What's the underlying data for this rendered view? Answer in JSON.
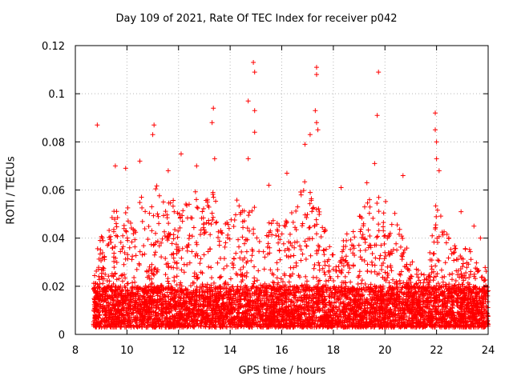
{
  "chart_data": {
    "type": "scatter",
    "title": "Day 109 of 2021, Rate Of TEC Index for receiver p042",
    "xlabel": "GPS time / hours",
    "ylabel": "ROTI / TECUs",
    "xlim": [
      8,
      24
    ],
    "ylim": [
      0,
      0.12
    ],
    "x_ticks": [
      8,
      10,
      12,
      14,
      16,
      18,
      20,
      22,
      24
    ],
    "y_ticks": [
      0,
      0.02,
      0.04,
      0.06,
      0.08,
      0.1,
      0.12
    ],
    "x_tick_labels": [
      "8",
      "10",
      "12",
      "14",
      "16",
      "18",
      "20",
      "22",
      "24"
    ],
    "y_tick_labels": [
      "0",
      "0.02",
      "0.04",
      "0.06",
      "0.08",
      "0.1",
      "0.12"
    ],
    "grid": true,
    "marker": "+",
    "color": "#ff0000",
    "series": [
      {
        "name": "ROTI",
        "outliers": [
          [
            8.85,
            0.087
          ],
          [
            9.55,
            0.07
          ],
          [
            9.95,
            0.069
          ],
          [
            10.5,
            0.072
          ],
          [
            11.05,
            0.087
          ],
          [
            11.0,
            0.083
          ],
          [
            11.6,
            0.068
          ],
          [
            12.1,
            0.075
          ],
          [
            12.7,
            0.07
          ],
          [
            13.35,
            0.094
          ],
          [
            13.3,
            0.088
          ],
          [
            13.4,
            0.073
          ],
          [
            14.7,
            0.097
          ],
          [
            14.9,
            0.113
          ],
          [
            14.95,
            0.109
          ],
          [
            14.95,
            0.093
          ],
          [
            14.95,
            0.084
          ],
          [
            14.7,
            0.073
          ],
          [
            15.5,
            0.062
          ],
          [
            16.2,
            0.067
          ],
          [
            16.9,
            0.079
          ],
          [
            17.1,
            0.083
          ],
          [
            17.35,
            0.111
          ],
          [
            17.35,
            0.108
          ],
          [
            17.3,
            0.093
          ],
          [
            17.35,
            0.088
          ],
          [
            17.4,
            0.085
          ],
          [
            18.3,
            0.061
          ],
          [
            19.3,
            0.063
          ],
          [
            19.6,
            0.071
          ],
          [
            19.75,
            0.109
          ],
          [
            19.7,
            0.091
          ],
          [
            20.7,
            0.066
          ],
          [
            21.95,
            0.092
          ],
          [
            21.95,
            0.085
          ],
          [
            22.0,
            0.08
          ],
          [
            22.0,
            0.073
          ],
          [
            22.1,
            0.068
          ],
          [
            22.95,
            0.051
          ],
          [
            23.45,
            0.045
          ],
          [
            23.7,
            0.04
          ]
        ],
        "envelope": [
          [
            8.7,
            0.02
          ],
          [
            8.9,
            0.045
          ],
          [
            9.2,
            0.035
          ],
          [
            9.5,
            0.06
          ],
          [
            9.8,
            0.04
          ],
          [
            10.0,
            0.055
          ],
          [
            10.3,
            0.045
          ],
          [
            10.6,
            0.06
          ],
          [
            10.9,
            0.05
          ],
          [
            11.1,
            0.065
          ],
          [
            11.4,
            0.055
          ],
          [
            11.7,
            0.06
          ],
          [
            12.0,
            0.05
          ],
          [
            12.3,
            0.058
          ],
          [
            12.6,
            0.06
          ],
          [
            13.0,
            0.055
          ],
          [
            13.3,
            0.065
          ],
          [
            13.6,
            0.045
          ],
          [
            14.0,
            0.05
          ],
          [
            14.3,
            0.06
          ],
          [
            14.6,
            0.05
          ],
          [
            15.0,
            0.055
          ],
          [
            15.3,
            0.045
          ],
          [
            15.6,
            0.05
          ],
          [
            16.0,
            0.045
          ],
          [
            16.3,
            0.05
          ],
          [
            16.6,
            0.055
          ],
          [
            16.9,
            0.065
          ],
          [
            17.2,
            0.06
          ],
          [
            17.5,
            0.05
          ],
          [
            17.8,
            0.04
          ],
          [
            18.1,
            0.035
          ],
          [
            18.4,
            0.04
          ],
          [
            18.7,
            0.045
          ],
          [
            19.0,
            0.05
          ],
          [
            19.3,
            0.055
          ],
          [
            19.6,
            0.06
          ],
          [
            19.9,
            0.055
          ],
          [
            20.2,
            0.058
          ],
          [
            20.5,
            0.05
          ],
          [
            20.8,
            0.04
          ],
          [
            21.1,
            0.03
          ],
          [
            21.4,
            0.025
          ],
          [
            21.7,
            0.03
          ],
          [
            22.0,
            0.06
          ],
          [
            22.3,
            0.045
          ],
          [
            22.6,
            0.04
          ],
          [
            22.9,
            0.035
          ],
          [
            23.2,
            0.038
          ],
          [
            23.5,
            0.035
          ],
          [
            23.8,
            0.03
          ],
          [
            24.0,
            0.032
          ]
        ],
        "baseline_range": [
          0.003,
          0.02
        ]
      }
    ]
  }
}
